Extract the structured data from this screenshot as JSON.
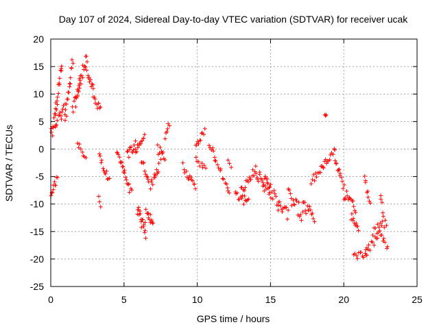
{
  "chart_data": {
    "type": "scatter",
    "title": "Day 107 of 2024, Sidereal Day-to-day VTEC variation (SDTVAR) for receiver ucak",
    "xlabel": "GPS time / hours",
    "ylabel": "SDTVAR / TECUs",
    "xlim": [
      0,
      25
    ],
    "ylim": [
      -25,
      20
    ],
    "xticks": [
      0,
      5,
      10,
      15,
      20,
      25
    ],
    "yticks": [
      -25,
      -20,
      -15,
      -10,
      -5,
      0,
      5,
      10,
      15,
      20
    ],
    "grid": true,
    "marker": "plus",
    "color": "#ff0000",
    "series": [
      {
        "name": "ucak",
        "segments": [
          {
            "x0": 0.0,
            "x1": 0.4,
            "y0": 2.0,
            "y1": 8.0,
            "n": 14,
            "jitter": 1.2
          },
          {
            "x0": 0.4,
            "x1": 0.75,
            "y0": 8.0,
            "y1": 15.5,
            "n": 12,
            "jitter": 1.0
          },
          {
            "x0": 0.0,
            "x1": 0.45,
            "y0": -8.0,
            "y1": -5.5,
            "n": 10,
            "jitter": 0.7
          },
          {
            "x0": 0.3,
            "x1": 1.0,
            "y0": 4.0,
            "y1": 7.5,
            "n": 14,
            "jitter": 1.2
          },
          {
            "x0": 1.0,
            "x1": 1.5,
            "y0": 6.0,
            "y1": 15.5,
            "n": 16,
            "jitter": 1.5
          },
          {
            "x0": 1.5,
            "x1": 2.0,
            "y0": 7.0,
            "y1": 11.0,
            "n": 12,
            "jitter": 1.5
          },
          {
            "x0": 1.8,
            "x1": 2.4,
            "y0": 10.0,
            "y1": 16.5,
            "n": 14,
            "jitter": 1.2
          },
          {
            "x0": 2.4,
            "x1": 2.9,
            "y0": 16.0,
            "y1": 10.0,
            "n": 12,
            "jitter": 1.2
          },
          {
            "x0": 2.9,
            "x1": 3.4,
            "y0": 10.0,
            "y1": 7.0,
            "n": 10,
            "jitter": 1.0
          },
          {
            "x0": 1.8,
            "x1": 2.4,
            "y0": 1.0,
            "y1": -2.0,
            "n": 8,
            "jitter": 0.8
          },
          {
            "x0": 3.3,
            "x1": 4.0,
            "y0": -1.0,
            "y1": -6.0,
            "n": 12,
            "jitter": 0.8
          },
          {
            "x0": 3.3,
            "x1": 3.4,
            "y0": -8.5,
            "y1": -10.5,
            "n": 3,
            "jitter": 0.3
          },
          {
            "x0": 4.5,
            "x1": 5.0,
            "y0": -1.0,
            "y1": -4.0,
            "n": 10,
            "jitter": 0.8
          },
          {
            "x0": 5.0,
            "x1": 5.5,
            "y0": -4.0,
            "y1": -8.0,
            "n": 10,
            "jitter": 0.8
          },
          {
            "x0": 5.2,
            "x1": 5.8,
            "y0": -1.0,
            "y1": 1.0,
            "n": 12,
            "jitter": 1.0
          },
          {
            "x0": 5.8,
            "x1": 6.4,
            "y0": 0.0,
            "y1": 2.5,
            "n": 12,
            "jitter": 0.8
          },
          {
            "x0": 5.9,
            "x1": 6.5,
            "y0": -11.0,
            "y1": -15.0,
            "n": 18,
            "jitter": 1.5
          },
          {
            "x0": 6.5,
            "x1": 7.0,
            "y0": -12.0,
            "y1": -14.0,
            "n": 12,
            "jitter": 1.2
          },
          {
            "x0": 6.2,
            "x1": 6.7,
            "y0": -2.0,
            "y1": -6.0,
            "n": 10,
            "jitter": 0.8
          },
          {
            "x0": 6.8,
            "x1": 7.4,
            "y0": -7.0,
            "y1": -3.0,
            "n": 12,
            "jitter": 0.8
          },
          {
            "x0": 7.3,
            "x1": 7.8,
            "y0": 0.0,
            "y1": -2.0,
            "n": 10,
            "jitter": 1.0
          },
          {
            "x0": 7.8,
            "x1": 8.1,
            "y0": 2.0,
            "y1": 4.5,
            "n": 6,
            "jitter": 0.8
          },
          {
            "x0": 9.0,
            "x1": 9.4,
            "y0": -3.0,
            "y1": -5.0,
            "n": 6,
            "jitter": 0.6
          },
          {
            "x0": 9.4,
            "x1": 9.9,
            "y0": -5.0,
            "y1": -7.0,
            "n": 8,
            "jitter": 0.6
          },
          {
            "x0": 9.9,
            "x1": 10.5,
            "y0": 0.5,
            "y1": 3.0,
            "n": 10,
            "jitter": 0.8
          },
          {
            "x0": 9.9,
            "x1": 10.6,
            "y0": -2.0,
            "y1": -3.5,
            "n": 8,
            "jitter": 0.6
          },
          {
            "x0": 10.8,
            "x1": 11.2,
            "y0": 1.0,
            "y1": -1.0,
            "n": 6,
            "jitter": 0.6
          },
          {
            "x0": 11.2,
            "x1": 11.8,
            "y0": -2.0,
            "y1": -5.0,
            "n": 8,
            "jitter": 0.8
          },
          {
            "x0": 11.9,
            "x1": 12.2,
            "y0": -6.0,
            "y1": -8.0,
            "n": 5,
            "jitter": 0.6
          },
          {
            "x0": 12.1,
            "x1": 12.3,
            "y0": -2.0,
            "y1": -3.0,
            "n": 3,
            "jitter": 0.4
          },
          {
            "x0": 12.6,
            "x1": 13.5,
            "y0": -8.0,
            "y1": -10.0,
            "n": 14,
            "jitter": 1.0
          },
          {
            "x0": 13.0,
            "x1": 14.0,
            "y0": -7.0,
            "y1": -4.0,
            "n": 16,
            "jitter": 1.2
          },
          {
            "x0": 14.0,
            "x1": 15.0,
            "y0": -4.0,
            "y1": -7.0,
            "n": 18,
            "jitter": 1.5
          },
          {
            "x0": 14.5,
            "x1": 15.5,
            "y0": -6.0,
            "y1": -10.0,
            "n": 16,
            "jitter": 1.5
          },
          {
            "x0": 15.5,
            "x1": 16.2,
            "y0": -10.0,
            "y1": -12.0,
            "n": 12,
            "jitter": 1.2
          },
          {
            "x0": 16.2,
            "x1": 17.2,
            "y0": -8.0,
            "y1": -12.0,
            "n": 16,
            "jitter": 1.5
          },
          {
            "x0": 17.2,
            "x1": 18.0,
            "y0": -10.0,
            "y1": -12.5,
            "n": 14,
            "jitter": 1.2
          },
          {
            "x0": 17.8,
            "x1": 18.6,
            "y0": -6.0,
            "y1": -3.0,
            "n": 12,
            "jitter": 0.8
          },
          {
            "x0": 18.6,
            "x1": 19.4,
            "y0": -3.0,
            "y1": 0.0,
            "n": 12,
            "jitter": 0.8
          },
          {
            "x0": 18.7,
            "x1": 18.8,
            "y0": 6.0,
            "y1": 6.5,
            "n": 3,
            "jitter": 0.3
          },
          {
            "x0": 19.4,
            "x1": 20.0,
            "y0": -2.0,
            "y1": -7.0,
            "n": 12,
            "jitter": 0.8
          },
          {
            "x0": 20.0,
            "x1": 20.8,
            "y0": -8.0,
            "y1": -11.0,
            "n": 14,
            "jitter": 1.2
          },
          {
            "x0": 20.5,
            "x1": 21.0,
            "y0": -12.0,
            "y1": -15.0,
            "n": 10,
            "jitter": 1.0
          },
          {
            "x0": 20.7,
            "x1": 21.6,
            "y0": -19.5,
            "y1": -19.0,
            "n": 12,
            "jitter": 0.6
          },
          {
            "x0": 21.4,
            "x1": 21.8,
            "y0": -5.0,
            "y1": -10.0,
            "n": 8,
            "jitter": 0.8
          },
          {
            "x0": 21.5,
            "x1": 22.5,
            "y0": -19.0,
            "y1": -15.0,
            "n": 14,
            "jitter": 0.8
          },
          {
            "x0": 22.0,
            "x1": 22.9,
            "y0": -15.0,
            "y1": -13.5,
            "n": 12,
            "jitter": 0.8
          },
          {
            "x0": 22.5,
            "x1": 22.7,
            "y0": -8.0,
            "y1": -12.0,
            "n": 5,
            "jitter": 0.6
          },
          {
            "x0": 22.6,
            "x1": 23.0,
            "y0": -16.0,
            "y1": -18.0,
            "n": 6,
            "jitter": 0.6
          }
        ]
      }
    ]
  }
}
